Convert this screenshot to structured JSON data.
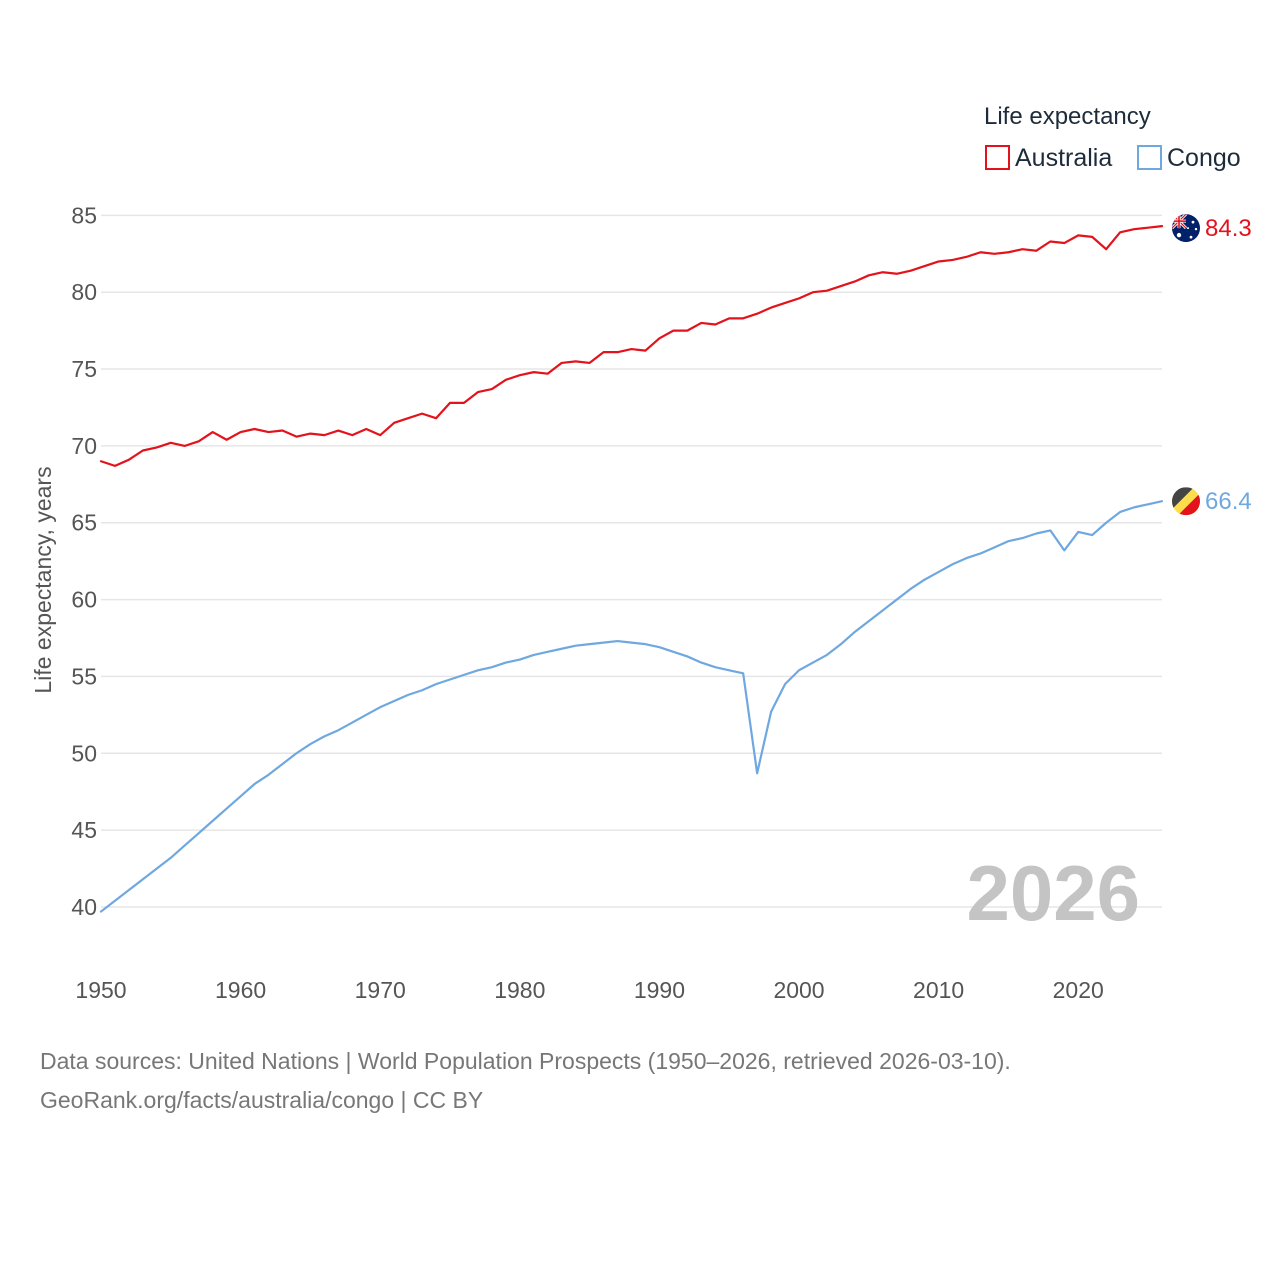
{
  "chart_data": {
    "type": "line",
    "title": "",
    "xlabel": "",
    "ylabel": "Life expectancy, years",
    "xlim": [
      1950,
      2026
    ],
    "ylim": [
      38.5,
      86
    ],
    "x_ticks": [
      1950,
      1960,
      1970,
      1980,
      1990,
      2000,
      2010,
      2020
    ],
    "y_ticks": [
      40,
      45,
      50,
      55,
      60,
      65,
      70,
      75,
      80,
      85
    ],
    "grid": true,
    "legend": {
      "title": "Life expectancy",
      "position": "top-right"
    },
    "year_watermark": "2026",
    "x": [
      1950,
      1951,
      1952,
      1953,
      1954,
      1955,
      1956,
      1957,
      1958,
      1959,
      1960,
      1961,
      1962,
      1963,
      1964,
      1965,
      1966,
      1967,
      1968,
      1969,
      1970,
      1971,
      1972,
      1973,
      1974,
      1975,
      1976,
      1977,
      1978,
      1979,
      1980,
      1981,
      1982,
      1983,
      1984,
      1985,
      1986,
      1987,
      1988,
      1989,
      1990,
      1991,
      1992,
      1993,
      1994,
      1995,
      1996,
      1997,
      1998,
      1999,
      2000,
      2001,
      2002,
      2003,
      2004,
      2005,
      2006,
      2007,
      2008,
      2009,
      2010,
      2011,
      2012,
      2013,
      2014,
      2015,
      2016,
      2017,
      2018,
      2019,
      2020,
      2021,
      2022,
      2023,
      2024,
      2025,
      2026
    ],
    "series": [
      {
        "name": "Australia",
        "color": "#e3121b",
        "end_label": "84.3",
        "flag": "australia-flag-icon",
        "values": [
          69.0,
          68.7,
          69.1,
          69.7,
          69.9,
          70.2,
          70.0,
          70.3,
          70.9,
          70.4,
          70.9,
          71.1,
          70.9,
          71.0,
          70.6,
          70.8,
          70.7,
          71.0,
          70.7,
          71.1,
          70.7,
          71.5,
          71.8,
          72.1,
          71.8,
          72.8,
          72.8,
          73.5,
          73.7,
          74.3,
          74.6,
          74.8,
          74.7,
          75.4,
          75.5,
          75.4,
          76.1,
          76.1,
          76.3,
          76.2,
          77.0,
          77.5,
          77.5,
          78.0,
          77.9,
          78.3,
          78.3,
          78.6,
          79.0,
          79.3,
          79.6,
          80.0,
          80.1,
          80.4,
          80.7,
          81.1,
          81.3,
          81.2,
          81.4,
          81.7,
          82.0,
          82.1,
          82.3,
          82.6,
          82.5,
          82.6,
          82.8,
          82.7,
          83.3,
          83.2,
          83.7,
          83.6,
          82.8,
          83.9,
          84.1,
          84.2,
          84.3
        ]
      },
      {
        "name": "Congo",
        "color": "#6fa8e0",
        "end_label": "66.4",
        "flag": "congo-flag-icon",
        "values": [
          39.7,
          40.4,
          41.1,
          41.8,
          42.5,
          43.2,
          44.0,
          44.8,
          45.6,
          46.4,
          47.2,
          48.0,
          48.6,
          49.3,
          50.0,
          50.6,
          51.1,
          51.5,
          52.0,
          52.5,
          53.0,
          53.4,
          53.8,
          54.1,
          54.5,
          54.8,
          55.1,
          55.4,
          55.6,
          55.9,
          56.1,
          56.4,
          56.6,
          56.8,
          57.0,
          57.1,
          57.2,
          57.3,
          57.2,
          57.1,
          56.9,
          56.6,
          56.3,
          55.9,
          55.6,
          55.4,
          55.2,
          48.7,
          52.7,
          54.5,
          55.4,
          55.9,
          56.4,
          57.1,
          57.9,
          58.6,
          59.3,
          60.0,
          60.7,
          61.3,
          61.8,
          62.3,
          62.7,
          63.0,
          63.4,
          63.8,
          64.0,
          64.3,
          64.5,
          63.2,
          64.4,
          64.2,
          65.0,
          65.7,
          66.0,
          66.2,
          66.4
        ]
      }
    ]
  },
  "footer": {
    "line1": "Data sources: United Nations | World Population Prospects (1950–2026, retrieved 2026-03-10).",
    "line2": "GeoRank.org/facts/australia/congo | CC BY"
  }
}
